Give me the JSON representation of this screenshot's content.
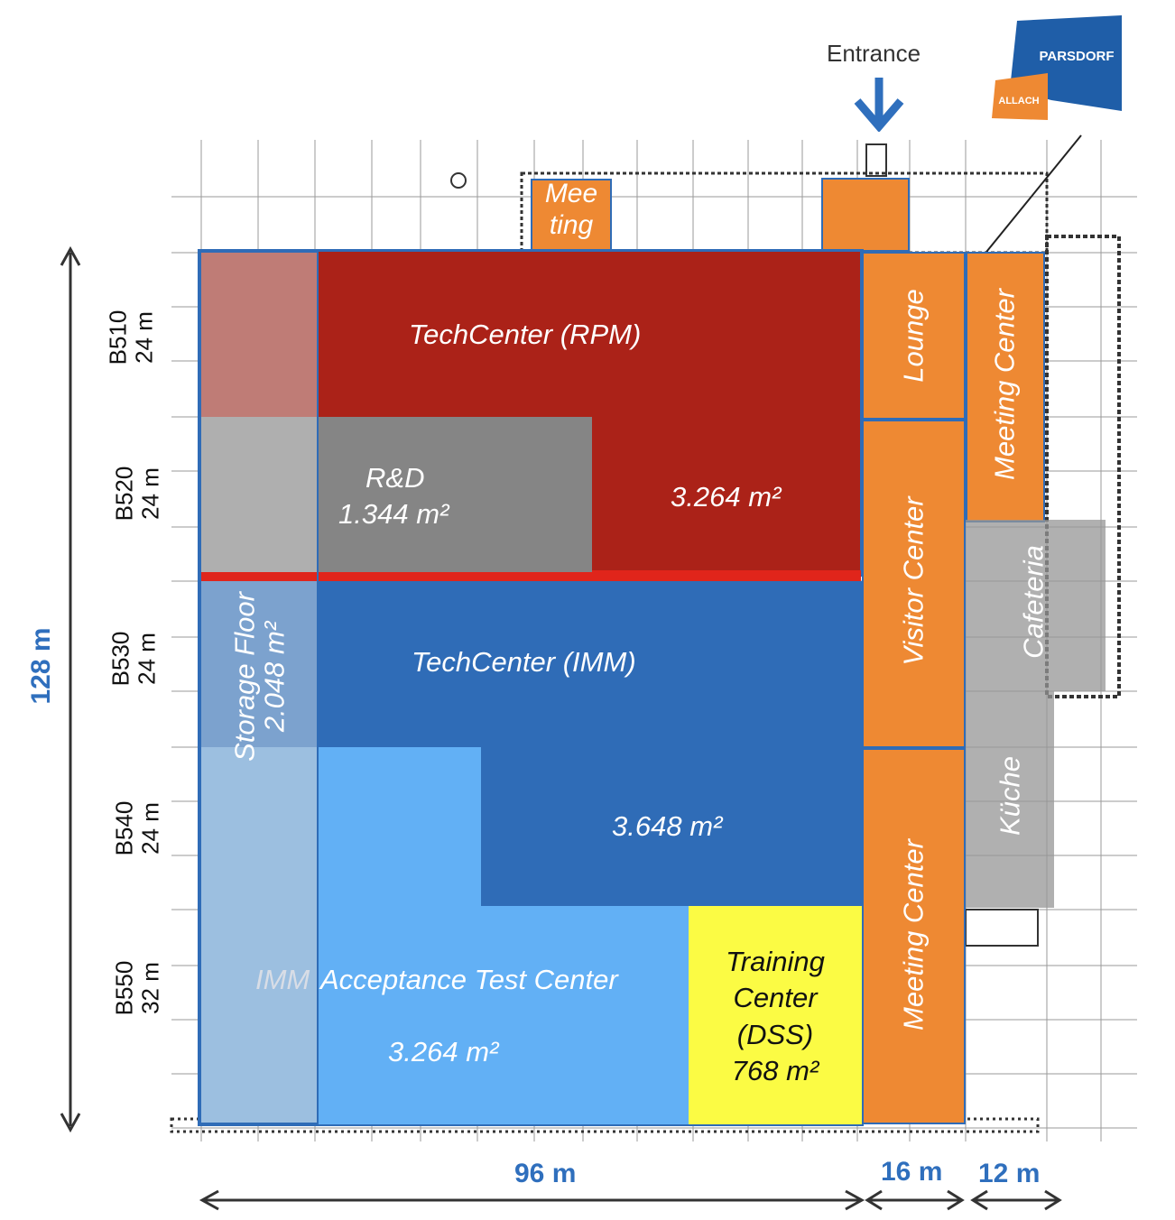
{
  "entrance_label": "Entrance",
  "logo": {
    "name": "PARSDORF",
    "sub": "ALLACH"
  },
  "rooms": {
    "meeting_small": "Mee\nting",
    "techcenter_rpm": "TechCenter (RPM)",
    "rd_name": "R&D",
    "rd_area": "1.344 m²",
    "rpm_area": "3.264 m²",
    "techcenter_imm": "TechCenter (IMM)",
    "imm_area": "3.648 m²",
    "storage_name": "Storage Floor",
    "storage_area": "2.048 m²",
    "imm_prefix": "IMM",
    "acceptance": "Acceptance Test Center",
    "acceptance_area": "3.264 m²",
    "training": "Training\nCenter\n(DSS)\n768 m²",
    "lounge": "Lounge",
    "meeting_center_top": "Meeting Center",
    "visitor_center": "Visitor  Center",
    "cafeteria": "Cafeteria",
    "kuche": "Küche",
    "meeting_center_bottom": "Meeting Center"
  },
  "buildings": [
    {
      "id": "B510",
      "len": "24 m"
    },
    {
      "id": "B520",
      "len": "24 m"
    },
    {
      "id": "B530",
      "len": "24 m"
    },
    {
      "id": "B540",
      "len": "24 m"
    },
    {
      "id": "B550",
      "len": "32 m"
    }
  ],
  "dimensions": {
    "height": "128 m",
    "width_main": "96 m",
    "width_mid": "16 m",
    "width_right": "12 m"
  },
  "colors": {
    "rpm": "#ab2218",
    "rd": "#858585",
    "imm": "#2f6cb7",
    "acceptance": "#62b0f5",
    "training": "#fbfb44",
    "orange": "#ee8933",
    "dim_blue": "#2f6fbd"
  }
}
